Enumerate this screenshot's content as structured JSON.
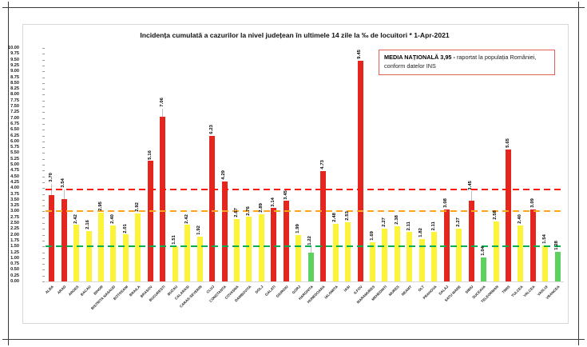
{
  "header": {
    "title": "Incidența cumulată a cazurilor la nivel județean în ultimele 14 zile la ‰ de locuitori * 1-Apr-2021"
  },
  "legend": {
    "bold": "MEDIA NAȚIONALĂ  3,95 -",
    "text": " raportat la populația României, conform datelor INS"
  },
  "chart_data": {
    "type": "bar",
    "title": "Incidența cumulată a cazurilor la nivel județean în ultimele 14 zile la ‰ de locuitori * 1-Apr-2021",
    "xlabel": "",
    "ylabel": "",
    "ylim": [
      0,
      10
    ],
    "ytick_step": 0.25,
    "grid": false,
    "legend_position": "top-right",
    "categories": [
      "ALBA",
      "ARAD",
      "ARGES",
      "BACAU",
      "BIHOR",
      "BISTRITA NASAUD",
      "BOTOSANI",
      "BRAILA",
      "BRASOV",
      "BUCURESTI",
      "BUZAU",
      "CALARASI",
      "CARAS-SEVERIN",
      "CLUJ",
      "CONSTANTA",
      "COVASNA",
      "DAMBOVITA",
      "DOLJ",
      "GALATI",
      "GIURGIU",
      "GORJ",
      "HARGHITA",
      "HUNEDOARA",
      "IALOMITA",
      "IASI",
      "ILFOV",
      "MARAMURES",
      "MEHEDINTI",
      "MURES",
      "NEAMT",
      "OLT",
      "PRAHOVA",
      "SALAJ",
      "SATU MARE",
      "SIBIU",
      "SUCEAVA",
      "TELEORMAN",
      "TIMIS",
      "TULCEA",
      "VALCEA",
      "VASLUI",
      "VRANCEA"
    ],
    "values": [
      3.7,
      3.54,
      2.42,
      2.16,
      2.95,
      2.4,
      2.01,
      2.92,
      5.16,
      7.06,
      1.51,
      2.42,
      1.92,
      6.23,
      4.29,
      2.67,
      2.76,
      2.89,
      3.14,
      3.45,
      1.99,
      1.22,
      4.73,
      2.48,
      2.53,
      9.45,
      1.69,
      2.27,
      2.38,
      2.11,
      1.82,
      2.11,
      3.08,
      2.27,
      3.45,
      1.04,
      2.58,
      5.65,
      2.4,
      3.09,
      1.54,
      1.28
    ],
    "statuses": [
      "red",
      "red",
      "yellow",
      "yellow",
      "yellow",
      "yellow",
      "yellow",
      "yellow",
      "red",
      "red",
      "yellow",
      "yellow",
      "yellow",
      "red",
      "red",
      "yellow",
      "yellow",
      "yellow",
      "red",
      "red",
      "yellow",
      "green",
      "red",
      "yellow",
      "yellow",
      "red",
      "yellow",
      "yellow",
      "yellow",
      "yellow",
      "yellow",
      "yellow",
      "red",
      "yellow",
      "red",
      "green",
      "yellow",
      "red",
      "yellow",
      "red",
      "yellow",
      "green"
    ],
    "palette": {
      "red": "#e5261f",
      "yellow": "#fdf338",
      "green": "#5ed05e"
    },
    "reference_lines": [
      {
        "name": "media-nationala",
        "value": 3.95,
        "color": "#fb1b10",
        "style": "dashed"
      },
      {
        "name": "prag-3.00",
        "value": 3.0,
        "color": "#ffa41d",
        "style": "dashed"
      },
      {
        "name": "prag-1.50",
        "value": 1.5,
        "color": "#00b050",
        "style": "dashed"
      }
    ],
    "leader_lines": {
      "0": 14,
      "1": 12,
      "9": 10,
      "21": 8,
      "34": 12
    }
  },
  "colors": {
    "frame": "#3c3c3c",
    "chart_border": "#d8d8d8",
    "axis_baseline": "#d9d9d9",
    "leader_line": "#c0c0c0",
    "legend_border": "#e05f57"
  }
}
